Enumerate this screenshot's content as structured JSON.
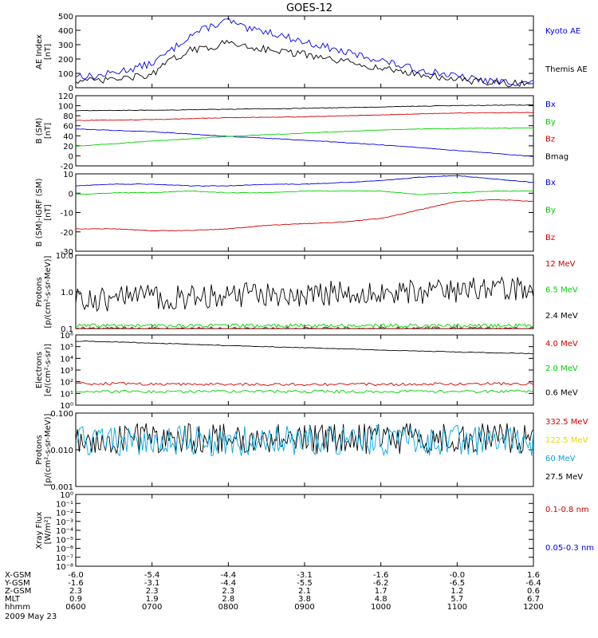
{
  "title": "GOES-12",
  "colors": {
    "black": "#000000",
    "blue": "#0000e6",
    "green": "#00d000",
    "red": "#d00000",
    "cyan": "#00a8e0",
    "yellow": "#e6d800"
  },
  "panels": [
    {
      "id": "ae",
      "ylabel": [
        "AE Index",
        "[nT]"
      ],
      "yticks": [
        "0",
        "100",
        "200",
        "300",
        "400",
        "500"
      ],
      "legend": [
        {
          "label": "Kyoto AE",
          "color": "blue"
        },
        {
          "label": "Themis AE",
          "color": "black"
        }
      ]
    },
    {
      "id": "bsm",
      "ylabel": [
        "B (SM)",
        "[nT]"
      ],
      "yticks": [
        "-20",
        "0",
        "20",
        "40",
        "60",
        "80",
        "100",
        "120"
      ],
      "legend": [
        {
          "label": "Bx",
          "color": "blue"
        },
        {
          "label": "By",
          "color": "green"
        },
        {
          "label": "Bz",
          "color": "red"
        },
        {
          "label": "Bmag",
          "color": "black"
        }
      ]
    },
    {
      "id": "bigrf",
      "ylabel": [
        "B (SM)-IGRF (SM)",
        "[nT]"
      ],
      "yticks": [
        "-30",
        "-20",
        "-10",
        "0",
        "10"
      ],
      "legend": [
        {
          "label": "Bx",
          "color": "blue"
        },
        {
          "label": "By",
          "color": "green"
        },
        {
          "label": "Bz",
          "color": "red"
        }
      ]
    },
    {
      "id": "protons1",
      "ylabel": [
        "Protons",
        "[p/(cm²-s-sr-MeV)]"
      ],
      "yticks": [
        "0.1",
        "1.0",
        "10.0"
      ],
      "legend": [
        {
          "label": "12 MeV",
          "color": "red"
        },
        {
          "label": "6.5 MeV",
          "color": "green"
        },
        {
          "label": "2.4 MeV",
          "color": "black"
        }
      ]
    },
    {
      "id": "electrons",
      "ylabel": [
        "Electrons",
        "[e/(cm²-s-sr)]"
      ],
      "yticks": [
        "10⁰",
        "10¹",
        "10²",
        "10³",
        "10⁴",
        "10⁵",
        "10⁶"
      ],
      "legend": [
        {
          "label": "4.0 MeV",
          "color": "red"
        },
        {
          "label": "2.0 MeV",
          "color": "green"
        },
        {
          "label": "0.6 MeV",
          "color": "black"
        }
      ]
    },
    {
      "id": "protons2",
      "ylabel": [
        "Protons",
        "[p/(cm²-s-sr-MeV)]"
      ],
      "yticks": [
        "0.001",
        "0.010",
        "0.100"
      ],
      "legend": [
        {
          "label": "332.5 MeV",
          "color": "red"
        },
        {
          "label": "122.5 MeV",
          "color": "yellow"
        },
        {
          "label": "60 MeV",
          "color": "cyan"
        },
        {
          "label": "27.5 MeV",
          "color": "black"
        }
      ]
    },
    {
      "id": "xray",
      "ylabel": [
        "Xray Flux",
        "[W/m²]"
      ],
      "yticks": [
        "10⁻⁸",
        "10⁻⁷",
        "10⁻⁶",
        "10⁻⁵",
        "10⁻⁴",
        "10⁻³",
        "10⁻²",
        "10⁻¹",
        "10⁰"
      ],
      "legend": [
        {
          "label": "0.1-0.8 nm",
          "color": "red"
        },
        {
          "label": "0.05-0.3 nm",
          "color": "blue"
        }
      ]
    }
  ],
  "xaxis": {
    "rows": [
      {
        "label": "X-GSM",
        "values": [
          "-6.0",
          "-5.4",
          "-4.4",
          "-3.1",
          "-1.6",
          "-0.0",
          "1.6"
        ]
      },
      {
        "label": "Y-GSM",
        "values": [
          "-1.6",
          "-3.1",
          "-4.4",
          "-5.5",
          "-6.2",
          "-6.5",
          "-6.4"
        ]
      },
      {
        "label": "Z-GSM",
        "values": [
          "2.3",
          "2.3",
          "2.3",
          "2.1",
          "1.7",
          "1.2",
          "0.6"
        ]
      },
      {
        "label": "MLT",
        "values": [
          "0.9",
          "1.9",
          "2.8",
          "3.8",
          "4.8",
          "5.7",
          "6.7"
        ]
      },
      {
        "label": "hhmm",
        "values": [
          "0600",
          "0700",
          "0800",
          "0900",
          "1000",
          "1100",
          "1200"
        ]
      }
    ],
    "date": "2009 May 23"
  },
  "chart_data": [
    {
      "type": "line",
      "panel": "ae",
      "ylim": [
        0,
        520
      ],
      "x": [
        6.0,
        6.25,
        6.5,
        6.75,
        7.0,
        7.25,
        7.5,
        7.75,
        8.0,
        8.25,
        8.5,
        8.75,
        9.0,
        9.25,
        9.5,
        9.75,
        10.0,
        10.25,
        10.5,
        10.75,
        11.0,
        11.25,
        11.5,
        11.75,
        12.0
      ],
      "series": [
        {
          "name": "Kyoto AE",
          "color": "blue",
          "values": [
            90,
            80,
            110,
            140,
            175,
            270,
            380,
            440,
            490,
            420,
            410,
            370,
            330,
            300,
            260,
            230,
            200,
            160,
            130,
            110,
            80,
            60,
            45,
            40,
            35
          ]
        },
        {
          "name": "Themis AE",
          "color": "black",
          "values": [
            55,
            45,
            60,
            75,
            95,
            200,
            270,
            290,
            330,
            300,
            280,
            260,
            240,
            210,
            190,
            170,
            140,
            120,
            95,
            80,
            60,
            45,
            35,
            30,
            28
          ]
        }
      ]
    },
    {
      "type": "line",
      "panel": "bsm",
      "ylim": [
        -25,
        125
      ],
      "x": [
        6,
        7,
        8,
        9,
        10,
        11,
        12
      ],
      "series": [
        {
          "name": "Bx",
          "color": "blue",
          "values": [
            54,
            48,
            38,
            30,
            20,
            8,
            -5
          ]
        },
        {
          "name": "By",
          "color": "green",
          "values": [
            17,
            28,
            38,
            45,
            52,
            55,
            56
          ]
        },
        {
          "name": "Bz",
          "color": "red",
          "values": [
            72,
            74,
            78,
            80,
            84,
            88,
            89
          ]
        },
        {
          "name": "Bmag",
          "color": "black",
          "values": [
            93,
            94,
            96,
            98,
            101,
            104,
            105
          ]
        }
      ]
    },
    {
      "type": "line",
      "panel": "bigrf",
      "ylim": [
        -33,
        12
      ],
      "x": [
        6,
        6.5,
        7,
        7.5,
        8,
        8.5,
        9,
        9.5,
        10,
        10.5,
        11,
        11.5,
        12
      ],
      "series": [
        {
          "name": "Bx",
          "color": "blue",
          "values": [
            5,
            6,
            6,
            5,
            5,
            6,
            6,
            7,
            8,
            10,
            11,
            9,
            7
          ]
        },
        {
          "name": "By",
          "color": "green",
          "values": [
            0,
            1,
            1,
            2,
            1,
            1,
            2,
            2,
            2,
            0,
            1,
            2,
            2
          ]
        },
        {
          "name": "Bz",
          "color": "red",
          "values": [
            -20,
            -20,
            -21,
            -21,
            -20,
            -18,
            -17,
            -16,
            -14,
            -9,
            -4,
            -3,
            -4
          ]
        }
      ]
    },
    {
      "type": "line",
      "panel": "protons1",
      "yscale": "log",
      "ylim": [
        0.1,
        10
      ],
      "x": [
        6,
        12
      ],
      "series": [
        {
          "name": "12 MeV",
          "color": "red",
          "values": [
            0.1,
            0.1
          ]
        },
        {
          "name": "6.5 MeV",
          "color": "green",
          "values": [
            0.12,
            0.12
          ]
        },
        {
          "name": "2.4 MeV",
          "color": "black",
          "values": [
            0.6,
            1.2
          ]
        }
      ]
    },
    {
      "type": "line",
      "panel": "electrons",
      "yscale": "log",
      "ylim": [
        1,
        1000000
      ],
      "x": [
        6,
        7,
        8,
        9,
        10,
        11,
        12
      ],
      "series": [
        {
          "name": "4.0 MeV",
          "color": "red",
          "values": [
            70,
            65,
            60,
            60,
            60,
            65,
            70
          ]
        },
        {
          "name": "2.0 MeV",
          "color": "green",
          "values": [
            15,
            14,
            15,
            15,
            14,
            15,
            15
          ]
        },
        {
          "name": "0.6 MeV",
          "color": "black",
          "values": [
            300000,
            200000,
            120000,
            80000,
            50000,
            35000,
            25000
          ]
        }
      ]
    },
    {
      "type": "line",
      "panel": "protons2",
      "yscale": "log",
      "ylim": [
        0.001,
        0.1
      ],
      "x": [
        6,
        12
      ],
      "series": [
        {
          "name": "27.5 MeV",
          "color": "black",
          "values": [
            0.02,
            0.02
          ]
        },
        {
          "name": "60 MeV",
          "color": "cyan",
          "values": [
            0.018,
            0.018
          ]
        }
      ]
    }
  ]
}
